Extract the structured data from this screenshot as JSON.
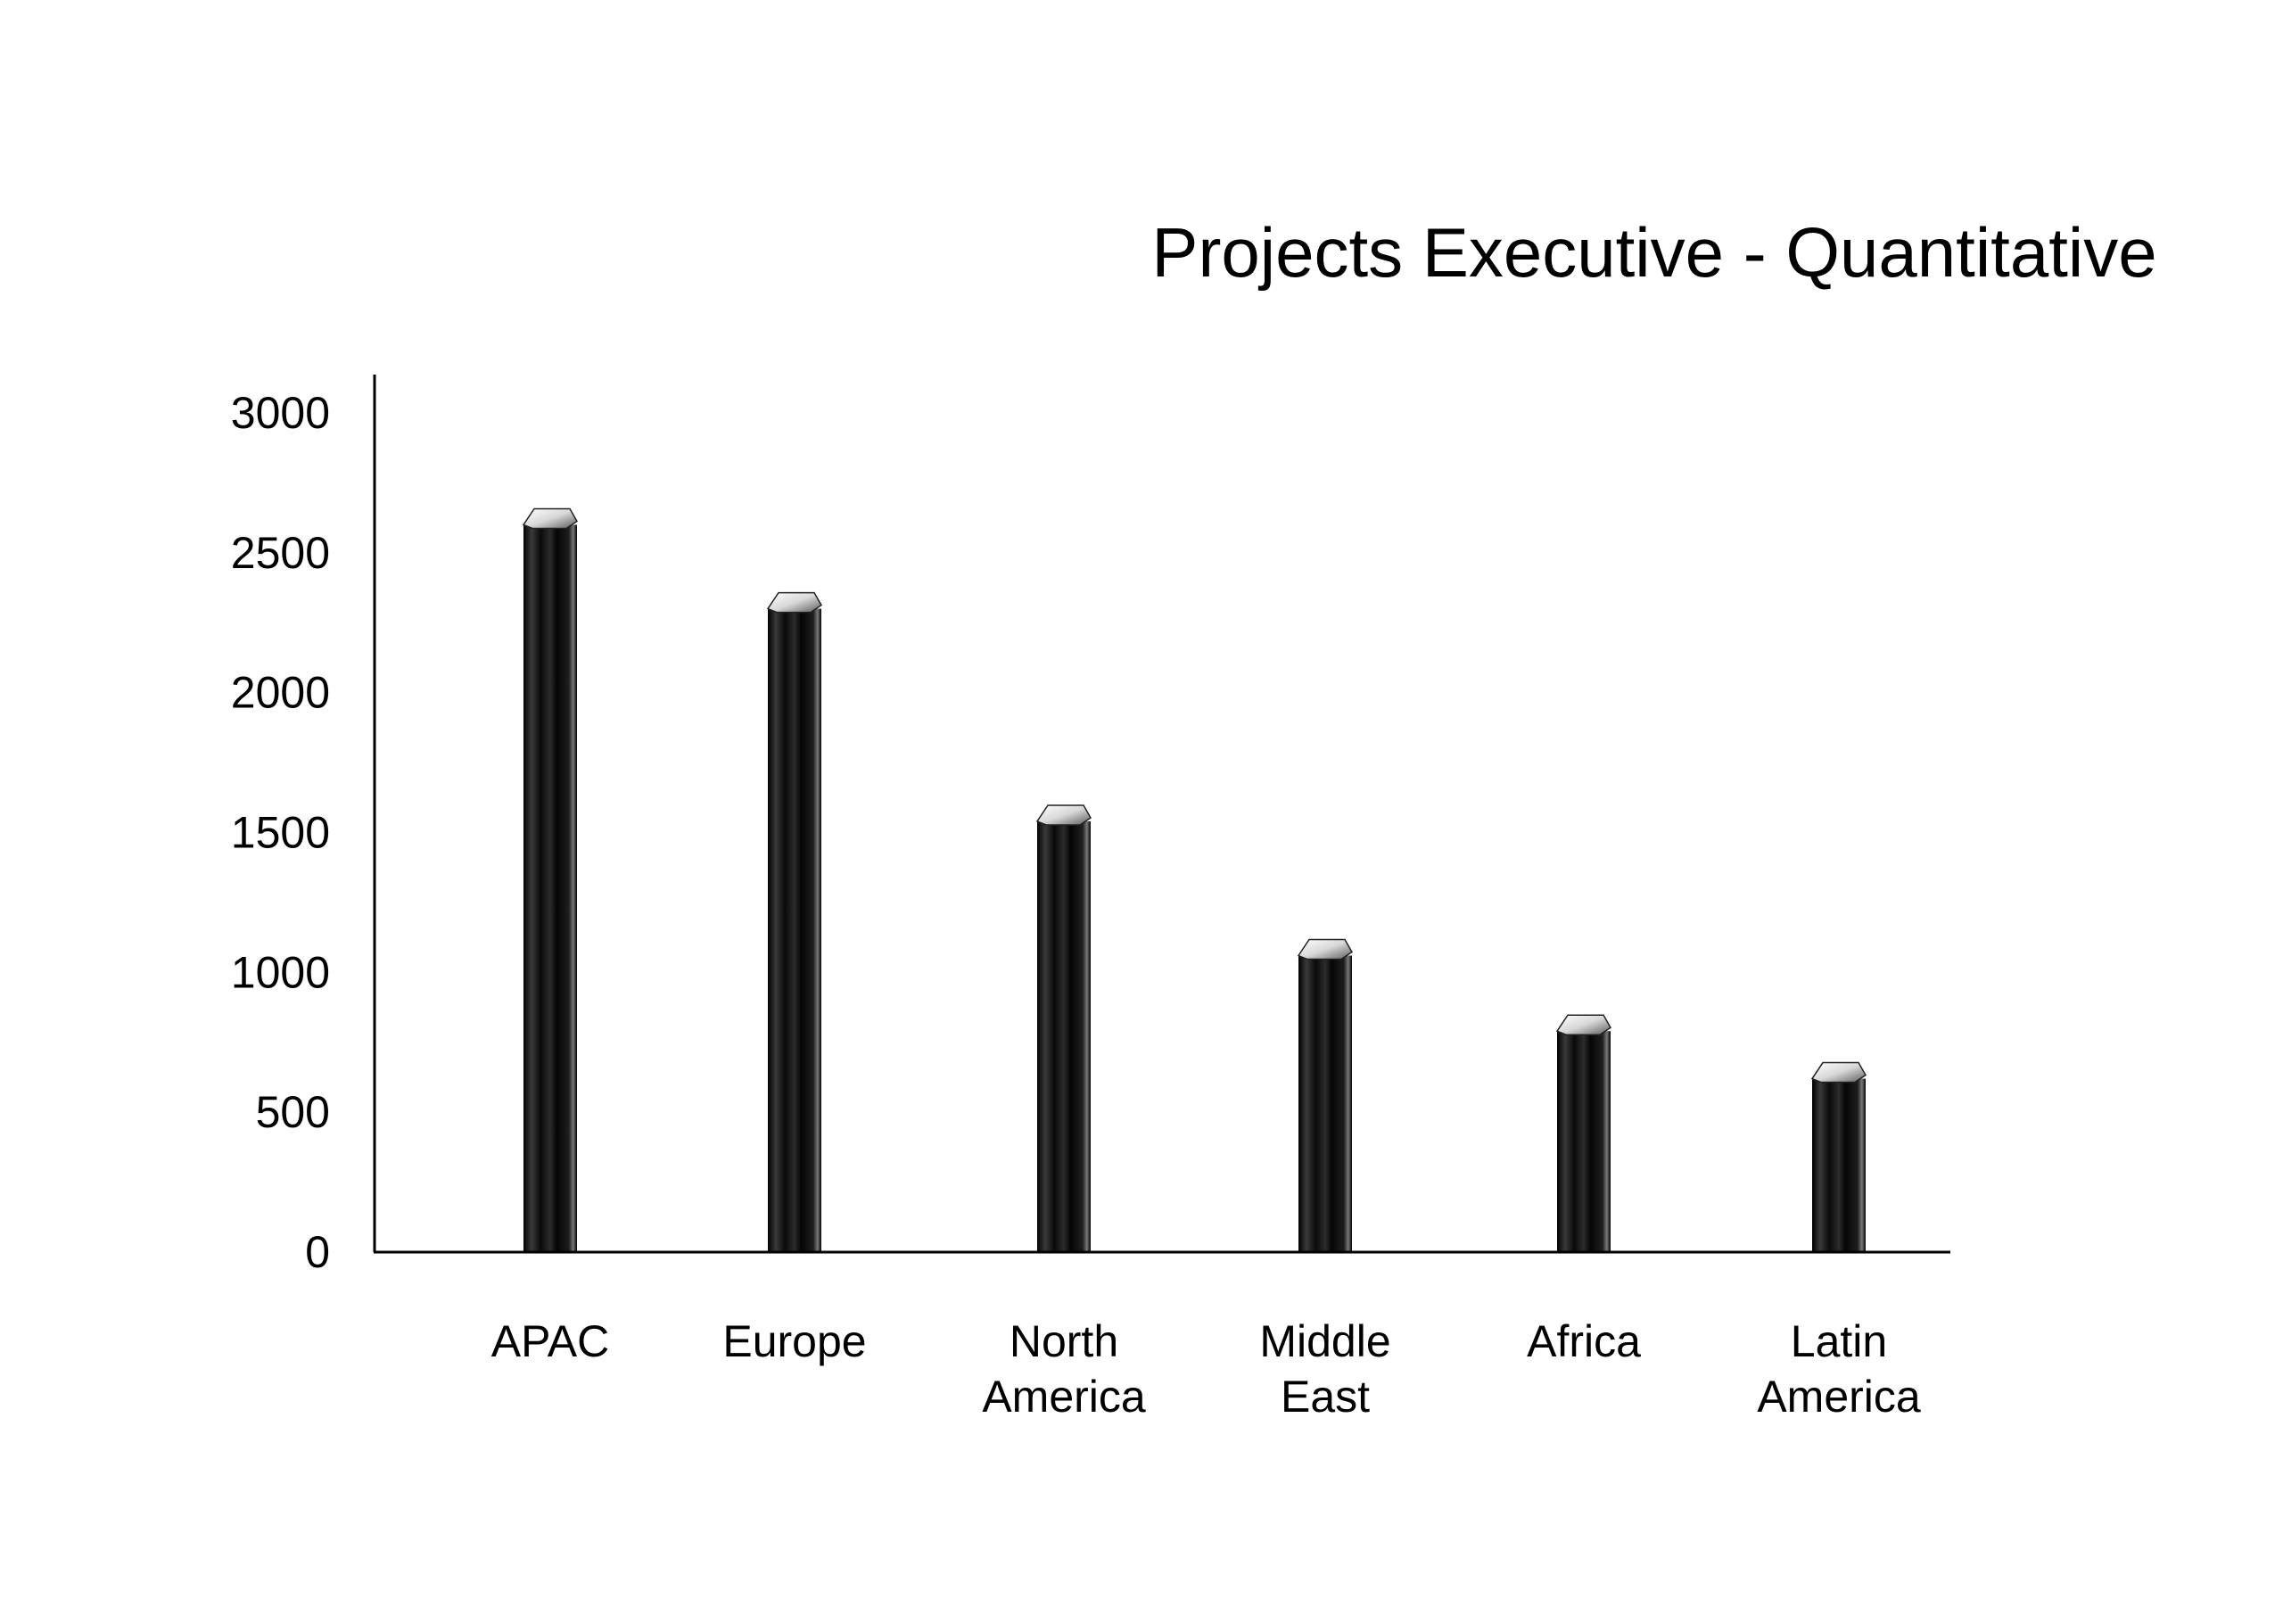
{
  "chart_data": {
    "type": "bar",
    "title": "Projects Executive - Quantitative",
    "xlabel": "",
    "ylabel": "",
    "categories": [
      "APAC",
      "Europe",
      "North America",
      "Middle East",
      "Africa",
      "Latin America"
    ],
    "category_label_lines": [
      [
        "APAC"
      ],
      [
        "Europe"
      ],
      [
        "North",
        "America"
      ],
      [
        "Middle",
        "East"
      ],
      [
        "Africa"
      ],
      [
        "Latin",
        "America"
      ]
    ],
    "values": [
      2600,
      2300,
      1540,
      1060,
      790,
      620
    ],
    "ylim": [
      0,
      3000
    ],
    "yticks": [
      "0",
      "500",
      "1000",
      "1500",
      "2000",
      "2500",
      "3000"
    ],
    "grid": false,
    "legend": "none",
    "bar_color": "#111111"
  }
}
